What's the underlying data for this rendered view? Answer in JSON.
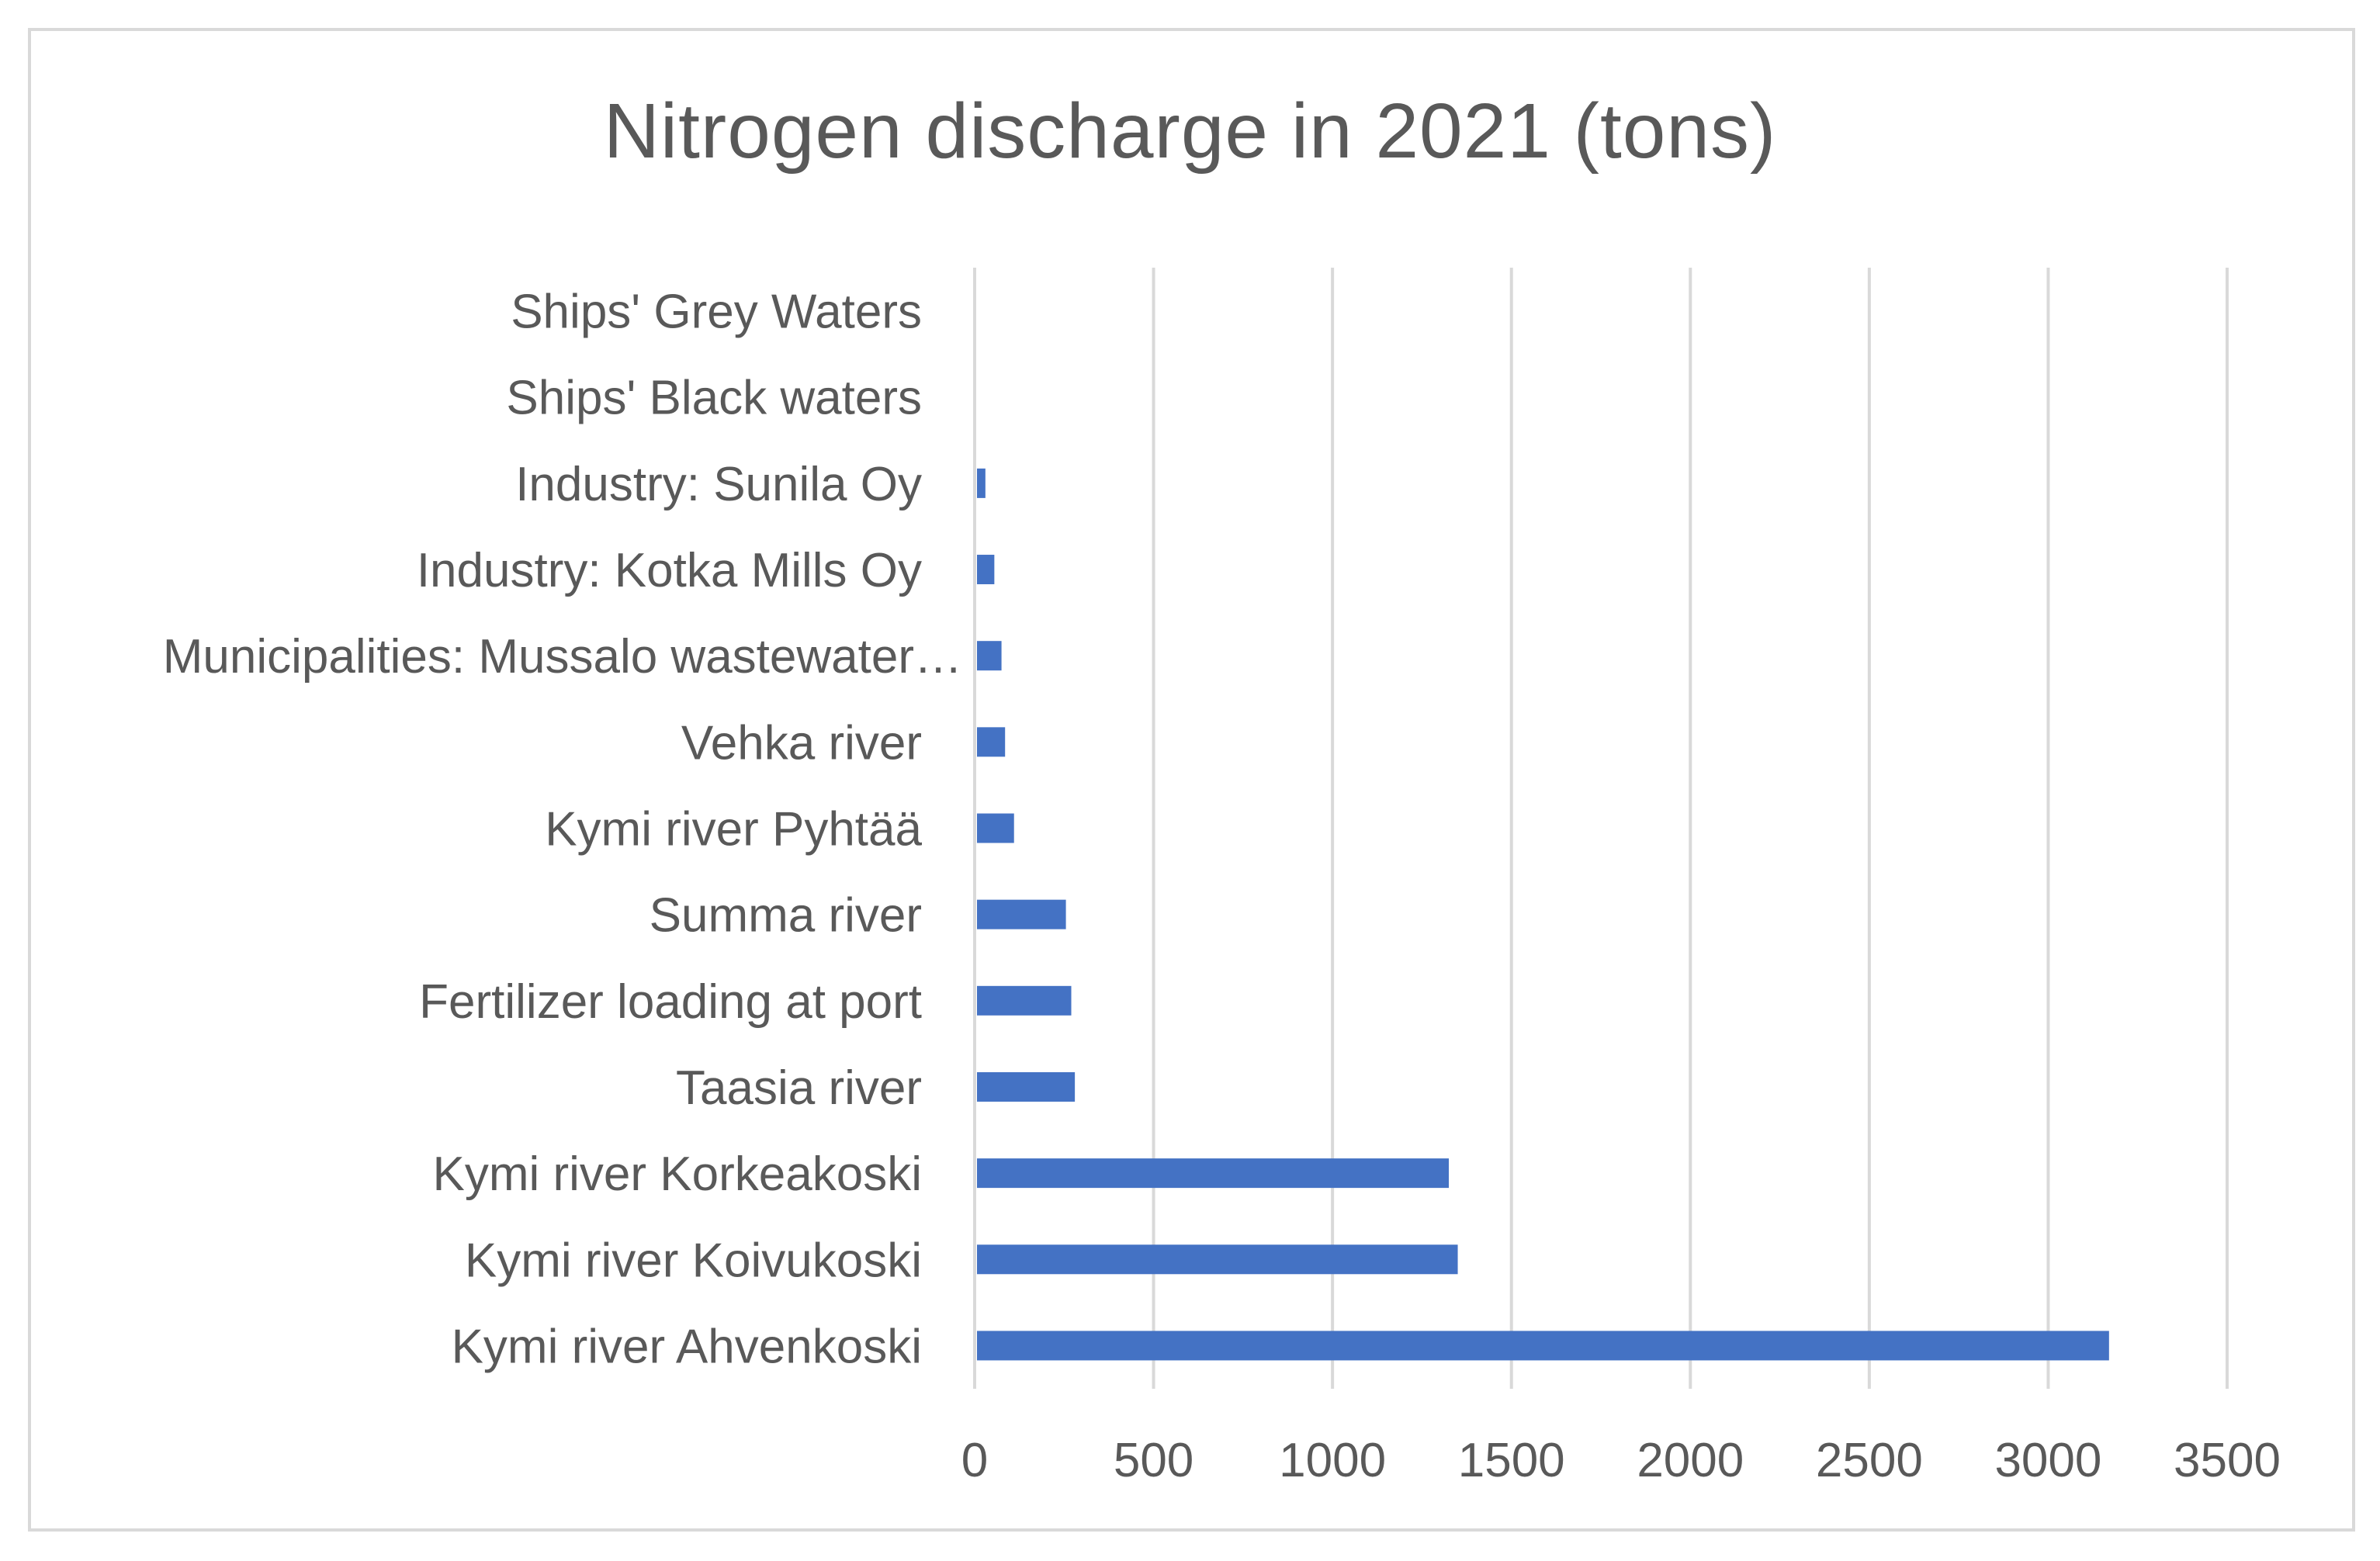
{
  "chart_data": {
    "type": "bar",
    "orientation": "horizontal",
    "title": "Nitrogen discharge in 2021 (tons)",
    "categories": [
      "Kymi river Ahvenkoski",
      "Kymi river Koivukoski",
      "Kymi river Korkeakoski",
      "Taasia river",
      "Fertilizer loading at port",
      "Summa river",
      "Kymi river Pyhtää",
      "Vehka river",
      "Municipalities: Mussalo wastewater…",
      "Industry: Kotka Mills Oy",
      "Industry: Sunila Oy",
      "Ships' Black waters",
      "Ships' Grey Waters"
    ],
    "values": [
      3170,
      1350,
      1325,
      280,
      270,
      255,
      110,
      85,
      75,
      55,
      30,
      1,
      1
    ],
    "xlim": [
      0,
      3500
    ],
    "xticks": [
      "0",
      "500",
      "1000",
      "1500",
      "2000",
      "2500",
      "3000",
      "3500"
    ],
    "xlabel": "",
    "ylabel": "",
    "grid": true,
    "legend": "none",
    "bar_color": "#4472c4",
    "grid_color": "#d9d9d9",
    "text_color": "#595959"
  }
}
